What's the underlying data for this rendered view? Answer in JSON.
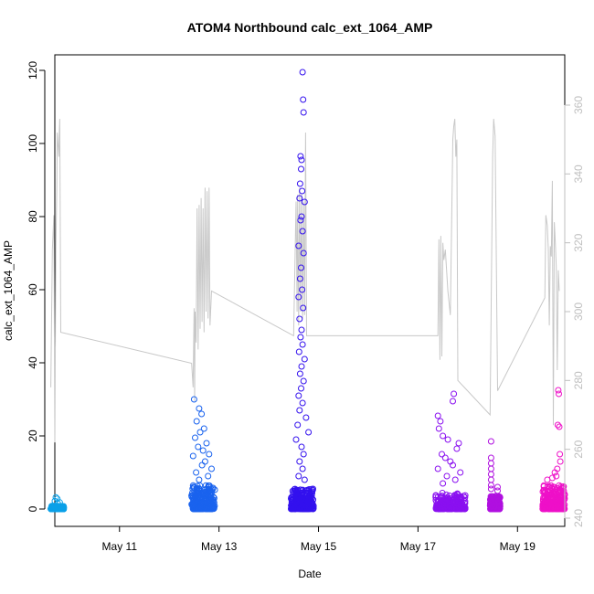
{
  "chart_data": {
    "type": "scatter",
    "title": "ATOM4 Northbound calc_ext_1064_AMP",
    "xlabel": "Date",
    "ylabel": "calc_ext_1064_AMP",
    "x_range_days": [
      9.7,
      19.95
    ],
    "ylim": [
      0,
      120
    ],
    "y_ticks": [
      0,
      20,
      40,
      60,
      80,
      100,
      120
    ],
    "x_ticks": [
      {
        "day": 11,
        "label": "May 11"
      },
      {
        "day": 13,
        "label": "May 13"
      },
      {
        "day": 15,
        "label": "May 15"
      },
      {
        "day": 17,
        "label": "May 17"
      },
      {
        "day": 19,
        "label": "May 19"
      }
    ],
    "secondary_axis": {
      "ylim": [
        240,
        360
      ],
      "ticks": [
        240,
        260,
        280,
        300,
        320,
        340,
        360
      ],
      "color": "#bfbfbf"
    },
    "series": [
      {
        "type": "scatter",
        "clusters": [
          {
            "x_start": 9.62,
            "x_end": 9.88,
            "color": "#0aa0e8",
            "base_max": 0.8,
            "spikes": [
              [
                9.72,
                3.2
              ],
              [
                9.75,
                2.8
              ],
              [
                9.7,
                2.2
              ],
              [
                9.8,
                1.8
              ],
              [
                9.76,
                1.5
              ]
            ]
          },
          {
            "x_start": 12.45,
            "x_end": 12.92,
            "color": "#1a63ee",
            "base_max": 6.5,
            "spikes": [
              [
                12.5,
                30
              ],
              [
                12.6,
                27.5
              ],
              [
                12.65,
                26
              ],
              [
                12.55,
                24
              ],
              [
                12.7,
                22
              ],
              [
                12.62,
                21
              ],
              [
                12.52,
                19.5
              ],
              [
                12.75,
                18
              ],
              [
                12.58,
                17
              ],
              [
                12.68,
                16
              ],
              [
                12.8,
                15
              ],
              [
                12.48,
                14.5
              ],
              [
                12.72,
                13
              ],
              [
                12.66,
                12
              ],
              [
                12.85,
                11
              ],
              [
                12.54,
                10
              ],
              [
                12.78,
                9
              ],
              [
                12.6,
                8
              ]
            ]
          },
          {
            "x_start": 14.45,
            "x_end": 14.9,
            "color": "#3311ee",
            "base_max": 5.5,
            "spikes": [
              [
                14.68,
                119.5
              ],
              [
                14.69,
                112
              ],
              [
                14.7,
                108.5
              ],
              [
                14.64,
                96.5
              ],
              [
                14.66,
                95.5
              ],
              [
                14.65,
                93
              ],
              [
                14.63,
                89
              ],
              [
                14.67,
                87
              ],
              [
                14.62,
                85
              ],
              [
                14.72,
                84
              ],
              [
                14.66,
                80
              ],
              [
                14.64,
                79
              ],
              [
                14.68,
                76
              ],
              [
                14.6,
                72
              ],
              [
                14.7,
                70
              ],
              [
                14.65,
                66
              ],
              [
                14.63,
                63
              ],
              [
                14.67,
                60
              ],
              [
                14.6,
                58
              ],
              [
                14.69,
                55
              ],
              [
                14.62,
                52
              ],
              [
                14.66,
                49
              ],
              [
                14.64,
                47
              ],
              [
                14.68,
                45
              ],
              [
                14.61,
                43
              ],
              [
                14.72,
                41
              ],
              [
                14.66,
                39
              ],
              [
                14.63,
                37
              ],
              [
                14.7,
                35
              ],
              [
                14.65,
                33
              ],
              [
                14.6,
                31
              ],
              [
                14.68,
                29
              ],
              [
                14.62,
                27
              ],
              [
                14.75,
                25
              ],
              [
                14.58,
                23
              ],
              [
                14.8,
                21
              ],
              [
                14.55,
                19
              ],
              [
                14.66,
                17
              ],
              [
                14.7,
                15
              ],
              [
                14.62,
                13
              ],
              [
                14.68,
                11
              ],
              [
                14.6,
                9
              ],
              [
                14.72,
                8
              ]
            ]
          },
          {
            "x_start": 17.35,
            "x_end": 17.95,
            "color": "#8a10f0",
            "base_max": 4.5,
            "spikes": [
              [
                17.72,
                31.5
              ],
              [
                17.7,
                29.5
              ],
              [
                17.4,
                25.5
              ],
              [
                17.45,
                24
              ],
              [
                17.42,
                22
              ],
              [
                17.5,
                20
              ],
              [
                17.6,
                19
              ],
              [
                17.82,
                18
              ],
              [
                17.78,
                16.5
              ],
              [
                17.48,
                15
              ],
              [
                17.55,
                14
              ],
              [
                17.65,
                13
              ],
              [
                17.7,
                12
              ],
              [
                17.4,
                11
              ],
              [
                17.85,
                10
              ],
              [
                17.58,
                9
              ],
              [
                17.75,
                8
              ],
              [
                17.5,
                7
              ]
            ]
          },
          {
            "x_start": 18.45,
            "x_end": 18.65,
            "color": "#b010e0",
            "base_max": 3.5,
            "spikes": [
              [
                18.47,
                18.5
              ],
              [
                18.47,
                14
              ],
              [
                18.47,
                12.5
              ],
              [
                18.47,
                11
              ],
              [
                18.47,
                9.5
              ],
              [
                18.47,
                8
              ],
              [
                18.47,
                6.5
              ],
              [
                18.47,
                5.5
              ],
              [
                18.6,
                6
              ],
              [
                18.6,
                5
              ]
            ]
          },
          {
            "x_start": 19.5,
            "x_end": 19.95,
            "color": "#ee10c8",
            "base_max": 6.5,
            "spikes": [
              [
                19.82,
                32.5
              ],
              [
                19.83,
                31.5
              ],
              [
                19.81,
                23
              ],
              [
                19.84,
                22.5
              ],
              [
                19.85,
                15
              ],
              [
                19.86,
                13
              ],
              [
                19.8,
                11
              ],
              [
                19.75,
                10
              ],
              [
                19.78,
                9
              ],
              [
                19.7,
                8.5
              ],
              [
                19.6,
                8
              ]
            ]
          }
        ]
      },
      {
        "type": "line",
        "axis": "secondary",
        "color": "#c8c8c8",
        "points": [
          [
            9.62,
            278
          ],
          [
            9.65,
            318
          ],
          [
            9.68,
            328
          ],
          [
            9.7,
            262
          ],
          [
            9.72,
            318
          ],
          [
            9.74,
            336
          ],
          [
            9.75,
            352
          ],
          [
            9.78,
            345
          ],
          [
            9.79,
            352
          ],
          [
            9.8,
            356
          ],
          [
            9.82,
            294
          ],
          [
            12.45,
            285
          ],
          [
            12.48,
            278
          ],
          [
            12.5,
            301
          ],
          [
            12.51,
            274
          ],
          [
            12.52,
            300
          ],
          [
            12.54,
            291
          ],
          [
            12.56,
            330
          ],
          [
            12.58,
            289
          ],
          [
            12.6,
            331
          ],
          [
            12.62,
            295
          ],
          [
            12.64,
            333
          ],
          [
            12.66,
            297
          ],
          [
            12.68,
            330
          ],
          [
            12.7,
            294
          ],
          [
            12.72,
            336
          ],
          [
            12.74,
            300
          ],
          [
            12.76,
            335
          ],
          [
            12.78,
            298
          ],
          [
            12.8,
            336
          ],
          [
            12.82,
            296
          ],
          [
            12.85,
            306
          ],
          [
            14.5,
            293
          ],
          [
            14.55,
            332
          ],
          [
            14.57,
            300
          ],
          [
            14.58,
            334
          ],
          [
            14.6,
            296
          ],
          [
            14.62,
            336
          ],
          [
            14.64,
            300
          ],
          [
            14.66,
            334
          ],
          [
            14.68,
            298
          ],
          [
            14.7,
            332
          ],
          [
            14.72,
            299
          ],
          [
            14.74,
            352
          ],
          [
            14.76,
            293
          ],
          [
            17.4,
            293
          ],
          [
            17.42,
            321
          ],
          [
            17.44,
            286
          ],
          [
            17.46,
            322
          ],
          [
            17.48,
            287
          ],
          [
            17.5,
            320
          ],
          [
            17.52,
            315
          ],
          [
            17.55,
            318
          ],
          [
            17.6,
            306
          ],
          [
            17.65,
            299
          ],
          [
            17.7,
            350
          ],
          [
            17.72,
            354
          ],
          [
            17.74,
            356
          ],
          [
            17.76,
            345
          ],
          [
            17.78,
            350
          ],
          [
            17.8,
            280
          ],
          [
            18.45,
            270
          ],
          [
            18.5,
            345
          ],
          [
            18.52,
            356
          ],
          [
            18.55,
            351
          ],
          [
            18.6,
            277
          ],
          [
            19.55,
            304
          ],
          [
            19.57,
            328
          ],
          [
            19.6,
            325
          ],
          [
            19.62,
            318
          ],
          [
            19.64,
            296
          ],
          [
            19.66,
            319
          ],
          [
            19.68,
            316
          ],
          [
            19.7,
            338
          ],
          [
            19.72,
            267
          ],
          [
            19.74,
            326
          ],
          [
            19.76,
            320
          ],
          [
            19.78,
            313
          ],
          [
            19.8,
            283
          ],
          [
            19.82,
            312
          ],
          [
            19.84,
            306
          ]
        ]
      }
    ]
  }
}
